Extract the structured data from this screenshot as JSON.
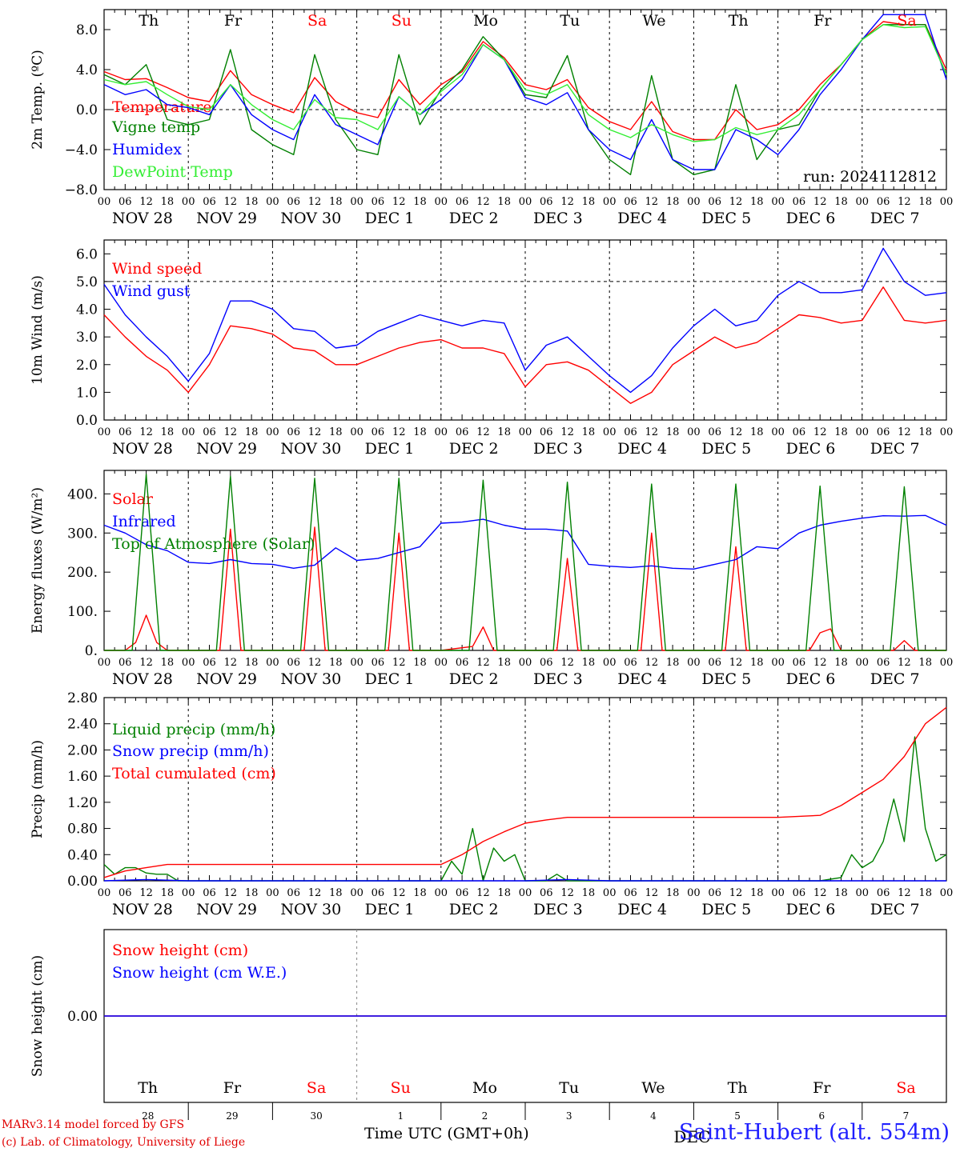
{
  "footer": {
    "model": "MARv3.14 model forced by GFS",
    "lab": "(c) Lab. of Climatology, University of Liege",
    "time_axis_label": "Time UTC (GMT+0h)",
    "station": "Saint-Hubert (alt. 554m)",
    "month_overlay": "DEC"
  },
  "colors": {
    "red": "#ff0000",
    "green": "#008000",
    "blue": "#0000ff",
    "light_green": "#33ee33",
    "weekend": "#ff0000",
    "text": "#000000"
  },
  "run_label": "run: 2024112812",
  "day_names": [
    "Th",
    "Fr",
    "Sa",
    "Su",
    "Mo",
    "Tu",
    "We",
    "Th",
    "Fr",
    "Sa"
  ],
  "weekend_days": [
    2,
    3,
    9
  ],
  "day_dates": [
    "NOV 28",
    "NOV 29",
    "NOV 30",
    "DEC  1",
    "DEC  2",
    "DEC  3",
    "DEC  4",
    "DEC  5",
    "DEC  6",
    "DEC  7"
  ],
  "day_numbers": [
    "28",
    "29",
    "30",
    "1",
    "2",
    "3",
    "4",
    "5",
    "6",
    "7"
  ],
  "hour_ticks": [
    "00",
    "06",
    "12",
    "18"
  ],
  "chart_data": [
    {
      "type": "line",
      "ylabel": "2m Temp. (ºC)",
      "yticks": [
        "8.0",
        "4.0",
        "0.0",
        "−4.0",
        "−8.0"
      ],
      "ylim": [
        -8,
        10
      ],
      "x_unit": "hours since 28 Nov 00 UTC",
      "zero_line": 0,
      "annotation": "run: 2024112812",
      "series": [
        {
          "name": "Temperature",
          "color": "#ff0000",
          "x": [
            0,
            6,
            12,
            18,
            24,
            30,
            36,
            42,
            48,
            54,
            60,
            66,
            72,
            78,
            84,
            90,
            96,
            102,
            108,
            114,
            120,
            126,
            132,
            138,
            144,
            150,
            156,
            162,
            168,
            174,
            180,
            186,
            192,
            198,
            204,
            210,
            216,
            222,
            228,
            234,
            240
          ],
          "values": [
            3.8,
            3.0,
            3.1,
            2.2,
            1.2,
            0.8,
            3.9,
            1.5,
            0.5,
            -0.3,
            3.2,
            0.8,
            -0.3,
            -0.8,
            3.0,
            0.5,
            2.5,
            3.8,
            6.8,
            5.2,
            2.5,
            2.0,
            3.0,
            0.2,
            -1.2,
            -2.0,
            0.8,
            -2.2,
            -3.0,
            -3.0,
            0.0,
            -2.0,
            -1.5,
            0.0,
            2.5,
            4.5,
            7.0,
            8.8,
            8.5,
            8.5,
            4.0
          ]
        },
        {
          "name": "Vigne temp",
          "color": "#008000",
          "x": [
            0,
            6,
            12,
            18,
            24,
            30,
            36,
            42,
            48,
            54,
            60,
            66,
            72,
            78,
            84,
            90,
            96,
            102,
            108,
            114,
            120,
            126,
            132,
            138,
            144,
            150,
            156,
            162,
            168,
            174,
            180,
            186,
            192,
            198,
            204,
            210,
            216,
            222,
            228,
            234,
            240
          ],
          "values": [
            3.5,
            2.5,
            4.5,
            -1.0,
            -1.5,
            -1.0,
            6.0,
            -2.0,
            -3.5,
            -4.5,
            5.5,
            -1.0,
            -4.0,
            -4.5,
            5.5,
            -1.5,
            2.0,
            4.0,
            7.3,
            5.0,
            1.5,
            1.2,
            5.4,
            -2.0,
            -5.0,
            -6.5,
            3.4,
            -5.0,
            -6.5,
            -6.0,
            2.5,
            -5.0,
            -2.0,
            -1.5,
            2.0,
            4.5,
            7.0,
            8.5,
            8.5,
            8.5,
            3.5
          ]
        },
        {
          "name": "Humidex",
          "color": "#0000ff",
          "x": [
            0,
            6,
            12,
            18,
            24,
            30,
            36,
            42,
            48,
            54,
            60,
            66,
            72,
            78,
            84,
            90,
            96,
            102,
            108,
            114,
            120,
            126,
            132,
            138,
            144,
            150,
            156,
            162,
            168,
            174,
            180,
            186,
            192,
            198,
            204,
            210,
            216,
            222,
            228,
            234,
            240
          ],
          "values": [
            2.5,
            1.5,
            2.0,
            0.5,
            0.2,
            -0.5,
            2.5,
            -0.5,
            -2.0,
            -3.0,
            1.5,
            -1.5,
            -2.5,
            -3.5,
            1.3,
            -0.5,
            1.0,
            3.0,
            6.5,
            5.0,
            1.2,
            0.5,
            1.7,
            -2.0,
            -4.0,
            -5.0,
            -1.0,
            -5.0,
            -6.0,
            -6.0,
            -2.0,
            -3.0,
            -4.5,
            -2.0,
            1.5,
            4.0,
            7.0,
            9.5,
            9.5,
            9.5,
            3.0
          ]
        },
        {
          "name": "DewPoint Temp",
          "color": "#33ee33",
          "x": [
            0,
            6,
            12,
            18,
            24,
            30,
            36,
            42,
            48,
            54,
            60,
            66,
            72,
            78,
            84,
            90,
            96,
            102,
            108,
            114,
            120,
            126,
            132,
            138,
            144,
            150,
            156,
            162,
            168,
            174,
            180,
            186,
            192,
            198,
            204,
            210,
            216,
            222,
            228,
            234,
            240
          ],
          "values": [
            3.0,
            2.5,
            2.8,
            1.5,
            0.3,
            0.0,
            2.5,
            0.5,
            -1.0,
            -2.0,
            1.0,
            -0.8,
            -1.0,
            -2.0,
            1.3,
            -0.5,
            1.8,
            3.5,
            6.5,
            5.0,
            2.0,
            1.5,
            2.5,
            -0.5,
            -2.0,
            -2.8,
            -1.5,
            -2.5,
            -3.2,
            -3.0,
            -1.8,
            -2.5,
            -2.0,
            -0.5,
            2.0,
            4.5,
            7.0,
            8.5,
            8.2,
            8.3,
            3.5
          ]
        }
      ]
    },
    {
      "type": "line",
      "ylabel": "10m Wind (m/s)",
      "yticks": [
        "6.0",
        "5.0",
        "4.0",
        "3.0",
        "2.0",
        "1.0",
        "0.0"
      ],
      "ylim": [
        0,
        6.5
      ],
      "reference_line": 5,
      "series": [
        {
          "name": "Wind speed",
          "color": "#ff0000",
          "x": [
            0,
            6,
            12,
            18,
            24,
            30,
            36,
            42,
            48,
            54,
            60,
            66,
            72,
            78,
            84,
            90,
            96,
            102,
            108,
            114,
            120,
            126,
            132,
            138,
            144,
            150,
            156,
            162,
            168,
            174,
            180,
            186,
            192,
            198,
            204,
            210,
            216,
            222,
            228,
            234,
            240
          ],
          "values": [
            3.8,
            3.0,
            2.3,
            1.8,
            1.0,
            2.0,
            3.4,
            3.3,
            3.1,
            2.6,
            2.5,
            2.0,
            2.0,
            2.3,
            2.6,
            2.8,
            2.9,
            2.6,
            2.6,
            2.4,
            1.2,
            2.0,
            2.1,
            1.8,
            1.2,
            0.6,
            1.0,
            2.0,
            2.5,
            3.0,
            2.6,
            2.8,
            3.3,
            3.8,
            3.7,
            3.5,
            3.6,
            4.8,
            3.6,
            3.5,
            3.6
          ]
        },
        {
          "name": "Wind gust",
          "color": "#0000ff",
          "x": [
            0,
            6,
            12,
            18,
            24,
            30,
            36,
            42,
            48,
            54,
            60,
            66,
            72,
            78,
            84,
            90,
            96,
            102,
            108,
            114,
            120,
            126,
            132,
            138,
            144,
            150,
            156,
            162,
            168,
            174,
            180,
            186,
            192,
            198,
            204,
            210,
            216,
            222,
            228,
            234,
            240
          ],
          "values": [
            4.9,
            3.8,
            3.0,
            2.3,
            1.4,
            2.4,
            4.3,
            4.3,
            4.0,
            3.3,
            3.2,
            2.6,
            2.7,
            3.2,
            3.5,
            3.8,
            3.6,
            3.4,
            3.6,
            3.5,
            1.8,
            2.7,
            3.0,
            2.3,
            1.6,
            1.0,
            1.6,
            2.6,
            3.4,
            4.0,
            3.4,
            3.6,
            4.5,
            5.0,
            4.6,
            4.6,
            4.7,
            6.2,
            5.0,
            4.5,
            4.6
          ]
        }
      ]
    },
    {
      "type": "line",
      "ylabel": "Energy fluxes (W/m²)",
      "yticks": [
        "400.",
        "300.",
        "200.",
        "100.",
        "0."
      ],
      "ylim": [
        0,
        460
      ],
      "series": [
        {
          "name": "Solar",
          "color": "#ff0000",
          "x": [
            0,
            6,
            9,
            12,
            15,
            18,
            24,
            33,
            36,
            39,
            42,
            48,
            57,
            60,
            63,
            66,
            72,
            81,
            84,
            87,
            90,
            96,
            105,
            108,
            111,
            114,
            120,
            129,
            132,
            135,
            138,
            144,
            153,
            156,
            159,
            162,
            168,
            177,
            180,
            183,
            186,
            192,
            201,
            204,
            207,
            210,
            216,
            225,
            228,
            231,
            234,
            240
          ],
          "values": [
            0,
            0,
            20,
            90,
            20,
            0,
            0,
            0,
            310,
            0,
            0,
            0,
            0,
            315,
            0,
            0,
            0,
            0,
            300,
            0,
            0,
            0,
            10,
            60,
            0,
            0,
            0,
            0,
            235,
            0,
            0,
            0,
            0,
            300,
            0,
            0,
            0,
            0,
            265,
            0,
            0,
            0,
            0,
            45,
            55,
            0,
            0,
            0,
            25,
            0,
            0,
            0
          ]
        },
        {
          "name": "Infrared",
          "color": "#0000ff",
          "x": [
            0,
            6,
            12,
            18,
            24,
            30,
            36,
            42,
            48,
            54,
            60,
            66,
            72,
            78,
            84,
            90,
            96,
            102,
            108,
            114,
            120,
            126,
            132,
            138,
            144,
            150,
            156,
            162,
            168,
            174,
            180,
            186,
            192,
            198,
            204,
            210,
            216,
            222,
            228,
            234,
            240
          ],
          "values": [
            320,
            300,
            270,
            255,
            225,
            222,
            232,
            222,
            220,
            210,
            218,
            262,
            230,
            235,
            250,
            265,
            325,
            328,
            335,
            320,
            310,
            310,
            305,
            220,
            215,
            212,
            216,
            210,
            208,
            220,
            232,
            265,
            260,
            300,
            320,
            330,
            338,
            344,
            343,
            345,
            320
          ]
        },
        {
          "name": "Top of Atmosphere (Solar)",
          "color": "#008000",
          "x": [
            0,
            6,
            8,
            12,
            16,
            18,
            24,
            32,
            36,
            40,
            42,
            48,
            56,
            60,
            64,
            66,
            72,
            80,
            84,
            88,
            90,
            96,
            104,
            108,
            112,
            114,
            120,
            128,
            132,
            136,
            138,
            144,
            152,
            156,
            160,
            162,
            168,
            176,
            180,
            184,
            186,
            192,
            200,
            204,
            208,
            210,
            216,
            224,
            228,
            232,
            234,
            240
          ],
          "values": [
            0,
            0,
            0,
            450,
            0,
            0,
            0,
            0,
            445,
            0,
            0,
            0,
            0,
            440,
            0,
            0,
            0,
            0,
            440,
            0,
            0,
            0,
            0,
            435,
            0,
            0,
            0,
            0,
            430,
            0,
            0,
            0,
            0,
            425,
            0,
            0,
            0,
            0,
            425,
            0,
            0,
            0,
            0,
            420,
            0,
            0,
            0,
            0,
            418,
            0,
            0,
            0
          ]
        }
      ]
    },
    {
      "type": "line",
      "ylabel": "Precip (mm/h)",
      "yticks": [
        "2.80",
        "2.40",
        "2.00",
        "1.60",
        "1.20",
        "0.80",
        "0.40",
        "0.00"
      ],
      "ylim": [
        0,
        2.8
      ],
      "series": [
        {
          "name": "Liquid precip (mm/h)",
          "color": "#008000",
          "x": [
            0,
            3,
            6,
            9,
            12,
            15,
            18,
            21,
            24,
            96,
            99,
            102,
            105,
            108,
            111,
            114,
            117,
            120,
            123,
            126,
            129,
            132,
            135,
            204,
            210,
            213,
            216,
            219,
            222,
            225,
            228,
            231,
            234,
            237,
            240
          ],
          "values": [
            0.25,
            0.1,
            0.2,
            0.2,
            0.12,
            0.1,
            0.1,
            0.0,
            0.0,
            0.0,
            0.3,
            0.1,
            0.8,
            0.0,
            0.5,
            0.3,
            0.4,
            0.0,
            0.0,
            0.0,
            0.1,
            0.0,
            0.0,
            0.0,
            0.05,
            0.4,
            0.2,
            0.3,
            0.6,
            1.25,
            0.6,
            2.2,
            0.8,
            0.3,
            0.4
          ]
        },
        {
          "name": "Snow precip (mm/h)",
          "color": "#0000ff",
          "x": [
            0,
            12,
            24,
            120,
            132,
            144,
            240
          ],
          "values": [
            0,
            0.02,
            0,
            0,
            0.02,
            0,
            0
          ]
        },
        {
          "name": "Total cumulated (cm)",
          "color": "#ff0000",
          "x": [
            0,
            6,
            12,
            18,
            24,
            48,
            72,
            96,
            102,
            108,
            114,
            120,
            126,
            132,
            144,
            168,
            192,
            204,
            210,
            216,
            222,
            228,
            234,
            240
          ],
          "values": [
            0.05,
            0.15,
            0.2,
            0.25,
            0.25,
            0.25,
            0.25,
            0.25,
            0.4,
            0.6,
            0.75,
            0.88,
            0.93,
            0.97,
            0.97,
            0.97,
            0.97,
            1.0,
            1.15,
            1.35,
            1.55,
            1.9,
            2.4,
            2.65
          ]
        }
      ]
    },
    {
      "type": "line",
      "ylabel": "Snow height (cm)",
      "yticks": [
        "0.00"
      ],
      "ylim": [
        -1,
        1
      ],
      "series": [
        {
          "name": "Snow height (cm)",
          "color": "#ff0000",
          "x": [
            0,
            240
          ],
          "values": [
            0,
            0
          ]
        },
        {
          "name": "Snow height (cm W.E.)",
          "color": "#0000ff",
          "x": [
            0,
            240
          ],
          "values": [
            0,
            0
          ]
        }
      ]
    }
  ]
}
